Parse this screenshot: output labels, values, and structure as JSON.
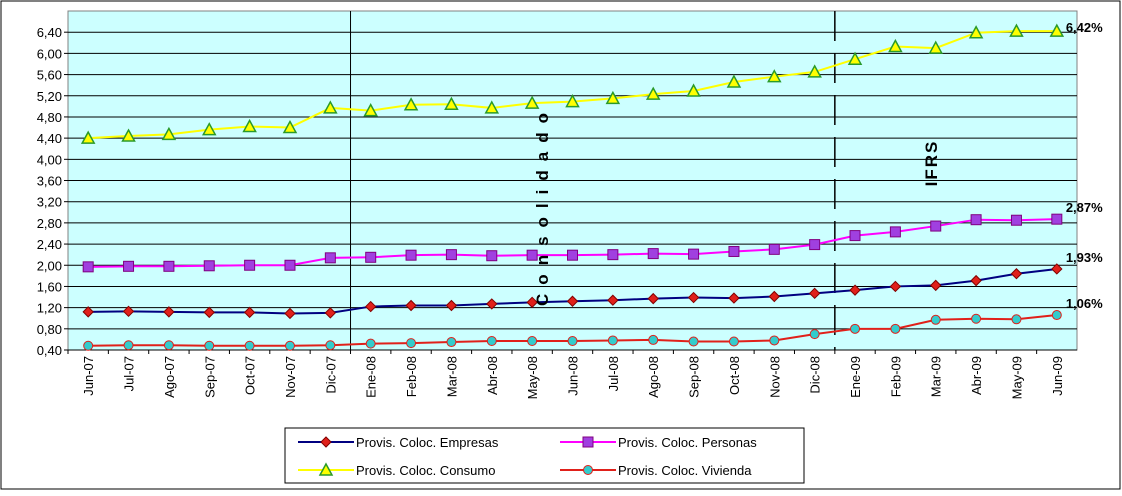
{
  "chart_data": {
    "type": "line",
    "categories": [
      "Jun-07",
      "Jul-07",
      "Ago-07",
      "Sep-07",
      "Oct-07",
      "Nov-07",
      "Dic-07",
      "Ene-08",
      "Feb-08",
      "Mar-08",
      "Abr-08",
      "May-08",
      "Jun-08",
      "Jul-08",
      "Ago-08",
      "Sep-08",
      "Oct-08",
      "Nov-08",
      "Dic-08",
      "Ene-09",
      "Feb-09",
      "Mar-09",
      "Abr-09",
      "May-09",
      "Jun-09"
    ],
    "series": [
      {
        "name": "Provis. Coloc. Empresas",
        "color": "#000080",
        "marker": "diamond",
        "marker_color": "#e0201a",
        "values": [
          1.12,
          1.13,
          1.12,
          1.11,
          1.11,
          1.09,
          1.1,
          1.22,
          1.24,
          1.24,
          1.27,
          1.3,
          1.32,
          1.34,
          1.37,
          1.39,
          1.38,
          1.41,
          1.47,
          1.53,
          1.6,
          1.62,
          1.71,
          1.84,
          1.93
        ],
        "value_labels": [
          null,
          null,
          null,
          null,
          null,
          null,
          null,
          null,
          null,
          null,
          null,
          null,
          null,
          null,
          null,
          null,
          null,
          null,
          null,
          null,
          null,
          null,
          null,
          null,
          "1,93%"
        ]
      },
      {
        "name": "Provis. Coloc. Personas",
        "color": "#ff00ff",
        "marker": "square",
        "marker_color": "#a040e0",
        "values": [
          1.97,
          1.98,
          1.98,
          1.99,
          2.0,
          2.0,
          2.14,
          2.15,
          2.19,
          2.2,
          2.18,
          2.19,
          2.19,
          2.2,
          2.22,
          2.21,
          2.26,
          2.3,
          2.39,
          2.56,
          2.63,
          2.74,
          2.86,
          2.85,
          2.87
        ],
        "value_labels": [
          null,
          null,
          null,
          null,
          null,
          null,
          null,
          null,
          null,
          null,
          null,
          null,
          null,
          null,
          null,
          null,
          null,
          null,
          null,
          null,
          null,
          null,
          null,
          null,
          "2,87%"
        ]
      },
      {
        "name": "Provis. Coloc. Consumo",
        "color": "#ffff00",
        "marker": "triangle",
        "marker_color": "#2a9a2a",
        "values": [
          4.4,
          4.44,
          4.47,
          4.56,
          4.62,
          4.6,
          4.97,
          4.92,
          5.03,
          5.04,
          4.97,
          5.06,
          5.09,
          5.15,
          5.23,
          5.29,
          5.46,
          5.56,
          5.65,
          5.89,
          6.13,
          6.1,
          6.39,
          6.42,
          6.42
        ],
        "value_labels": [
          null,
          null,
          null,
          null,
          null,
          null,
          null,
          null,
          null,
          null,
          null,
          null,
          null,
          null,
          null,
          null,
          null,
          null,
          null,
          null,
          null,
          null,
          null,
          null,
          "6,42%"
        ]
      },
      {
        "name": "Provis. Coloc. Vivienda",
        "color": "#e0201a",
        "marker": "circle",
        "marker_color": "#33cccc",
        "values": [
          0.48,
          0.49,
          0.49,
          0.48,
          0.48,
          0.48,
          0.49,
          0.52,
          0.53,
          0.55,
          0.57,
          0.57,
          0.57,
          0.58,
          0.59,
          0.56,
          0.56,
          0.58,
          0.7,
          0.8,
          0.8,
          0.97,
          0.99,
          0.98,
          1.06
        ],
        "value_labels": [
          null,
          null,
          null,
          null,
          null,
          null,
          null,
          null,
          null,
          null,
          null,
          null,
          null,
          null,
          null,
          null,
          null,
          null,
          null,
          null,
          null,
          null,
          null,
          null,
          "1,06%"
        ]
      }
    ],
    "annotations": [
      "Consolidado",
      "IFRS"
    ],
    "ylim": [
      0.4,
      6.8
    ],
    "yticks": [
      {
        "value": 0.4,
        "label": "0,40"
      },
      {
        "value": 0.8,
        "label": "0,80"
      },
      {
        "value": 1.2,
        "label": "1,20"
      },
      {
        "value": 1.6,
        "label": "1,60"
      },
      {
        "value": 2.0,
        "label": "2,00"
      },
      {
        "value": 2.4,
        "label": "2,40"
      },
      {
        "value": 2.8,
        "label": "2,80"
      },
      {
        "value": 3.2,
        "label": "3,20"
      },
      {
        "value": 3.6,
        "label": "3,60"
      },
      {
        "value": 4.0,
        "label": "4,00"
      },
      {
        "value": 4.4,
        "label": "4,40"
      },
      {
        "value": 4.8,
        "label": "4,80"
      },
      {
        "value": 5.2,
        "label": "5,20"
      },
      {
        "value": 5.6,
        "label": "5,60"
      },
      {
        "value": 6.0,
        "label": "6,00"
      },
      {
        "value": 6.4,
        "label": "6,40"
      }
    ],
    "grid": true,
    "plot_background": "#ccffff",
    "legend_position": "bottom"
  }
}
